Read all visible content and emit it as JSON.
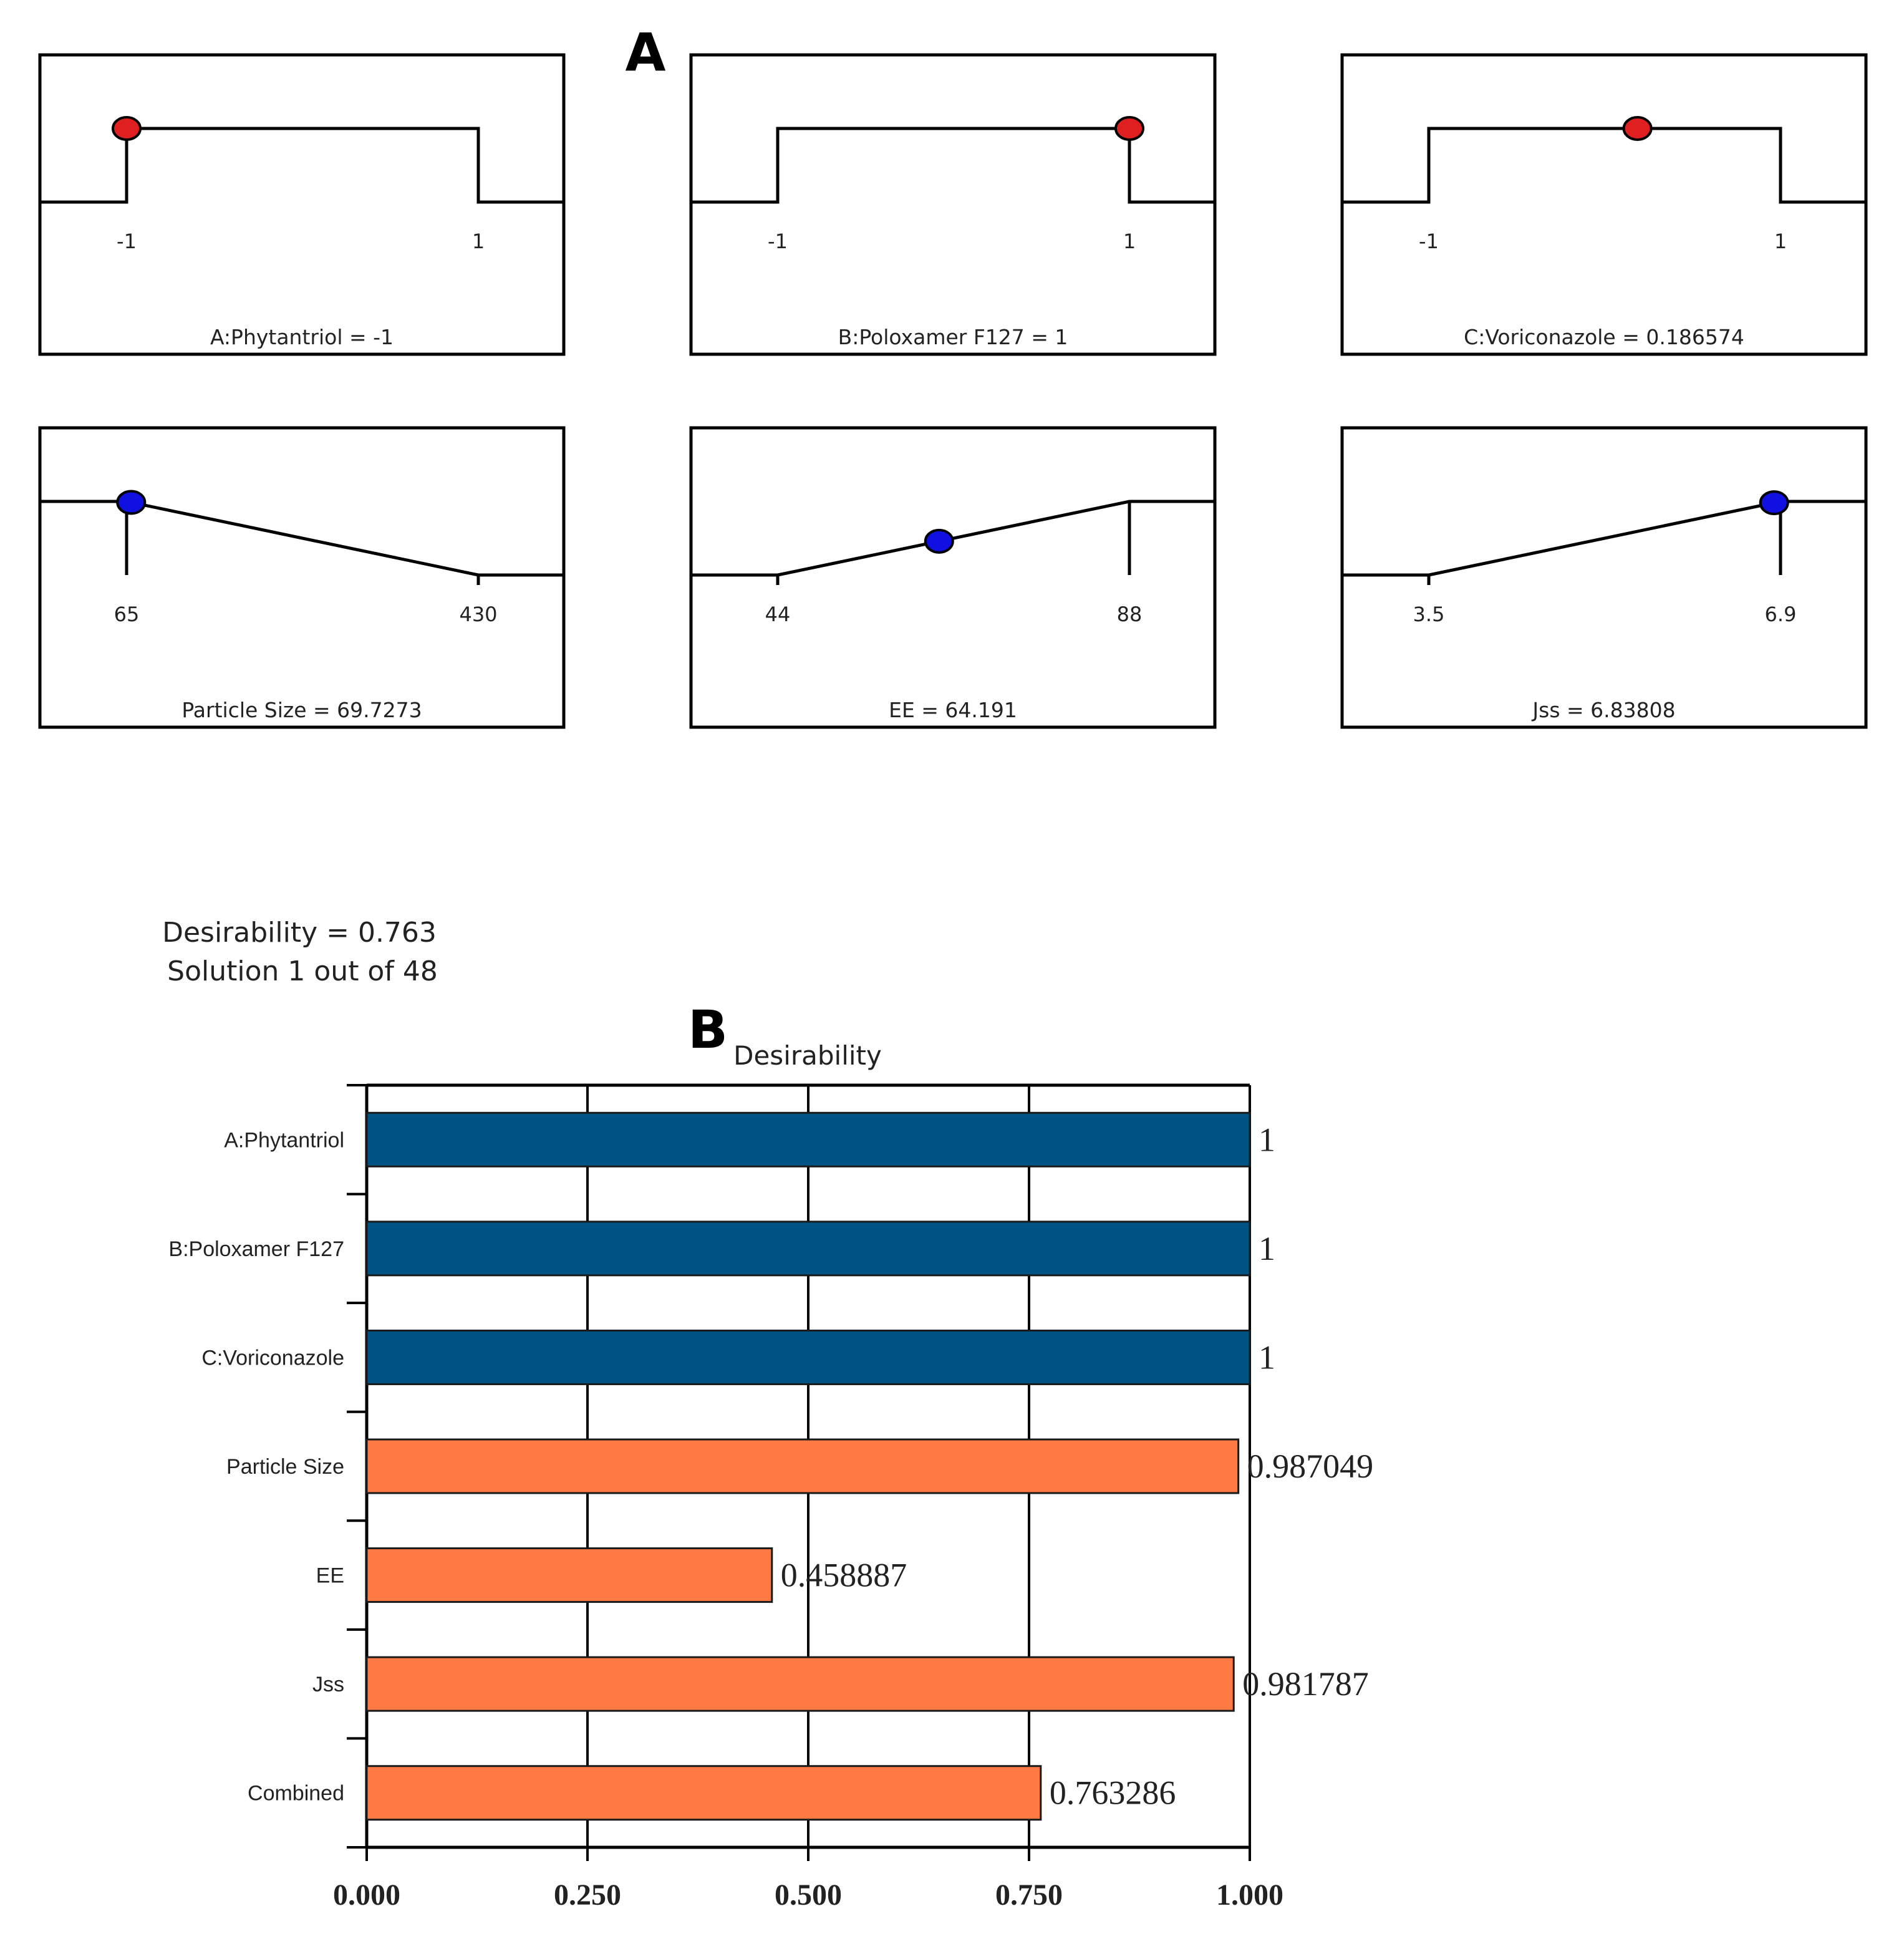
{
  "panel_a": {
    "label": "A",
    "factors": [
      {
        "name": "A:Phytantriol",
        "caption": "A:Phytantriol = -1",
        "low_label": "-1",
        "high_label": "1",
        "low": -1,
        "high": 1,
        "value": -1,
        "kind": "range",
        "marker_color": "#e02020"
      },
      {
        "name": "B:Poloxamer F127",
        "caption": "B:Poloxamer F127 = 1",
        "low_label": "-1",
        "high_label": "1",
        "low": -1,
        "high": 1,
        "value": 1,
        "kind": "range",
        "marker_color": "#e02020"
      },
      {
        "name": "C:Voriconazole",
        "caption": "C:Voriconazole = 0.186574",
        "low_label": "-1",
        "high_label": "1",
        "low": -1,
        "high": 1,
        "value": 0.186574,
        "kind": "range",
        "marker_color": "#e02020"
      }
    ],
    "responses": [
      {
        "name": "Particle Size",
        "caption": "Particle Size = 69.7273",
        "low_label": "65",
        "high_label": "430",
        "low": 65,
        "high": 430,
        "value": 69.7273,
        "kind": "minimize",
        "marker_color": "#1010e0"
      },
      {
        "name": "EE",
        "caption": "EE = 64.191",
        "low_label": "44",
        "high_label": "88",
        "low": 44,
        "high": 88,
        "value": 64.191,
        "kind": "maximize",
        "marker_color": "#1010e0"
      },
      {
        "name": "Jss",
        "caption": "Jss = 6.83808",
        "low_label": "3.5",
        "high_label": "6.9",
        "low": 3.5,
        "high": 6.9,
        "value": 6.83808,
        "kind": "maximize",
        "marker_color": "#1010e0"
      }
    ],
    "desirability_line": "Desirability = 0.763",
    "solution_line": "Solution 1 out of 48"
  },
  "panel_b": {
    "label": "B"
  },
  "chart_data": {
    "type": "bar",
    "orientation": "horizontal",
    "title": "Desirability",
    "categories": [
      "A:Phytantriol",
      "B:Poloxamer F127",
      "C:Voriconazole",
      "Particle Size",
      "EE",
      "Jss",
      "Combined"
    ],
    "values": [
      1,
      1,
      1,
      0.987049,
      0.458887,
      0.981787,
      0.763286
    ],
    "value_labels": [
      "1",
      "1",
      "1",
      "0.987049",
      "0.458887",
      "0.981787",
      "0.763286"
    ],
    "bar_groups": [
      "factor",
      "factor",
      "factor",
      "response",
      "response",
      "response",
      "response"
    ],
    "colors": {
      "factor": "#005485",
      "response": "#ff7a45"
    },
    "xlim": [
      0,
      1
    ],
    "xticks": [
      0,
      0.25,
      0.5,
      0.75,
      1
    ],
    "xtick_labels": [
      "0.000",
      "0.250",
      "0.500",
      "0.750",
      "1.000"
    ],
    "grid": "vertical"
  }
}
